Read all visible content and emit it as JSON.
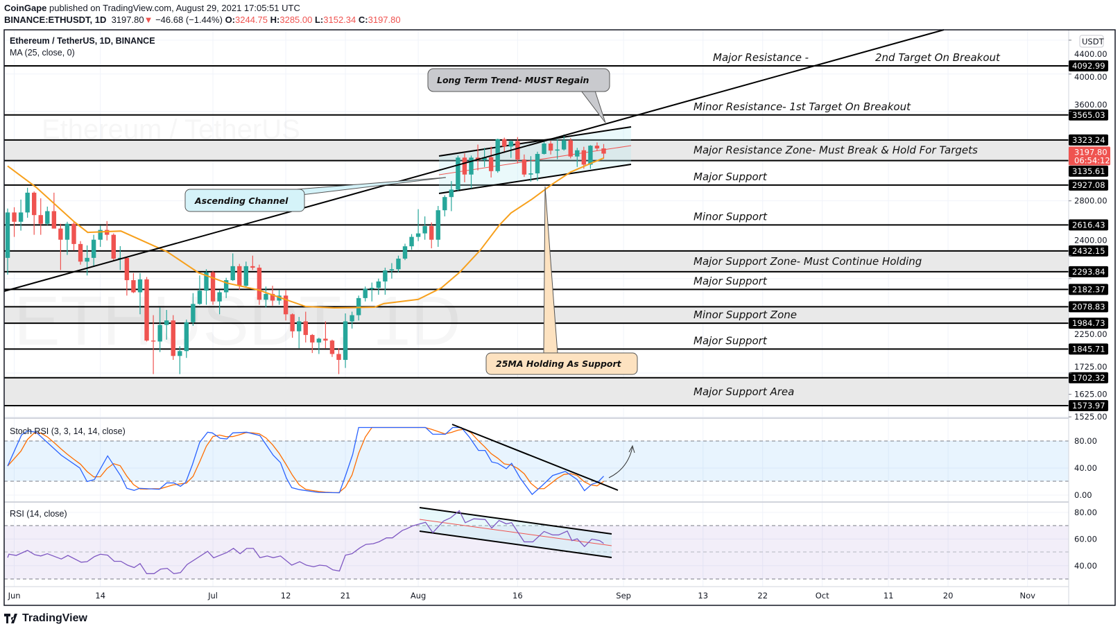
{
  "header": {
    "publisher": "CoinGape",
    "published_text": "published on TradingView.com, August 29, 2021 17:05:51 UTC",
    "symbol": "BINANCE:ETHUSDT, 1D",
    "last": "3197.80",
    "change": "−46.68 (−1.44%)",
    "o_label": "O:",
    "o": "3244.75",
    "h_label": "H:",
    "h": "3285.00",
    "l_label": "L:",
    "l": "3152.34",
    "c_label": "C:",
    "c": "3197.80"
  },
  "legend": {
    "title": "Ethereum / TetherUS, 1D, BINANCE",
    "ma": "MA (25, close, 0)"
  },
  "watermark": {
    "big": "ETHUSDT, 1D",
    "small": "Ethereum / TetherUS"
  },
  "currency_button": "USDT",
  "current_price": {
    "value": "3197.80",
    "countdown": "06:54:12"
  },
  "callouts": {
    "long_term": "Long Term Trend- MUST Regain",
    "channel": "Ascending Channel",
    "ma_support": "25MA Holding As Support"
  },
  "branding": "TradingView",
  "colors": {
    "up": "#26a69a",
    "down": "#ef5350",
    "ma": "#f7a01c",
    "k": "#2962ff",
    "d": "#ff6d00",
    "rsi": "#7e57c2"
  },
  "chart_data": {
    "type": "candlestick",
    "title": "Ethereum / TetherUS, 1D, BINANCE",
    "scale": "log",
    "ylim": [
      1500,
      4500
    ],
    "candles": {
      "o": [
        2385,
        2710,
        2640,
        2710,
        2865,
        2690,
        2625,
        2720,
        2590,
        2510,
        2625,
        2480,
        2360,
        2385,
        2510,
        2580,
        2545,
        2380,
        2385,
        2240,
        2165,
        2245,
        1890,
        1885,
        1975,
        2000,
        1810,
        1835,
        1990,
        2095,
        2175,
        2290,
        2110,
        2165,
        2240,
        2330,
        2205,
        2330,
        2320,
        2120,
        2155,
        2115,
        2145,
        2035,
        1940,
        1995,
        1920,
        1880,
        1900,
        1890,
        1820,
        1790,
        1995,
        2030,
        2130,
        2186,
        2192,
        2232,
        2302,
        2310,
        2380,
        2464,
        2530,
        2555,
        2608,
        2510,
        2727,
        2830,
        2890,
        3162,
        3015,
        3162,
        3140,
        3166,
        3044,
        3330,
        3262,
        3312,
        3145,
        3015,
        3025,
        3195,
        3290,
        3225,
        3235,
        3320,
        3172,
        3228,
        3100,
        3270,
        3244.75
      ],
      "h": [
        2740,
        2750,
        2810,
        2905,
        2875,
        2820,
        2755,
        2865,
        2625,
        2640,
        2640,
        2500,
        2470,
        2545,
        2610,
        2645,
        2555,
        2465,
        2390,
        2285,
        2285,
        2260,
        2030,
        2075,
        2060,
        2030,
        1860,
        2005,
        2160,
        2270,
        2310,
        2300,
        2180,
        2255,
        2415,
        2345,
        2360,
        2400,
        2340,
        2200,
        2205,
        2180,
        2180,
        2040,
        2020,
        2050,
        1925,
        1905,
        1995,
        1895,
        1850,
        2040,
        2050,
        2145,
        2200,
        2225,
        2250,
        2320,
        2350,
        2400,
        2482,
        2550,
        2735,
        2680,
        2635,
        2760,
        2845,
        2960,
        3180,
        3200,
        3180,
        3280,
        3250,
        3260,
        3335,
        3345,
        3320,
        3350,
        3190,
        3175,
        3215,
        3310,
        3315,
        3330,
        3375,
        3340,
        3250,
        3260,
        3275,
        3300,
        3285.0
      ],
      "l": [
        2275,
        2530,
        2575,
        2670,
        2545,
        2545,
        2615,
        2590,
        2305,
        2405,
        2435,
        2340,
        2270,
        2325,
        2460,
        2505,
        2365,
        2305,
        2145,
        2160,
        2035,
        1885,
        1720,
        1830,
        1895,
        1790,
        1720,
        1800,
        1970,
        2090,
        2090,
        2090,
        2035,
        2130,
        2235,
        2180,
        2195,
        2305,
        2090,
        2075,
        2085,
        2090,
        2000,
        1905,
        1850,
        1880,
        1825,
        1820,
        1850,
        1805,
        1720,
        1750,
        1955,
        2000,
        2110,
        2110,
        2150,
        2150,
        2250,
        2290,
        2370,
        2440,
        2500,
        2510,
        2450,
        2460,
        2680,
        2720,
        2880,
        2950,
        2900,
        3050,
        3080,
        2990,
        3030,
        3205,
        3160,
        3110,
        2995,
        2955,
        2960,
        3190,
        3190,
        3148,
        3225,
        3155,
        3080,
        3065,
        3065,
        3225,
        3152.34
      ],
      "c": [
        2710,
        2640,
        2710,
        2865,
        2690,
        2625,
        2720,
        2590,
        2510,
        2625,
        2480,
        2360,
        2385,
        2510,
        2580,
        2545,
        2380,
        2385,
        2240,
        2165,
        2245,
        1890,
        1885,
        1975,
        2000,
        1810,
        1835,
        1990,
        2095,
        2175,
        2290,
        2110,
        2165,
        2240,
        2330,
        2205,
        2330,
        2320,
        2120,
        2155,
        2115,
        2145,
        2035,
        1940,
        1995,
        1920,
        1880,
        1900,
        1890,
        1820,
        1790,
        1995,
        2030,
        2130,
        2186,
        2192,
        2232,
        2302,
        2310,
        2380,
        2464,
        2530,
        2555,
        2608,
        2510,
        2727,
        2830,
        2890,
        3162,
        3015,
        3162,
        3140,
        3166,
        3044,
        3330,
        3262,
        3312,
        3145,
        3015,
        3025,
        3195,
        3290,
        3225,
        3235,
        3320,
        3172,
        3228,
        3100,
        3270,
        3244.48,
        3197.8
      ]
    },
    "ma25": [
      [
        0,
        3088
      ],
      [
        4.3,
        2909
      ],
      [
        10.1,
        2638
      ],
      [
        12.1,
        2562
      ],
      [
        17.1,
        2572
      ],
      [
        24.1,
        2426
      ],
      [
        28.8,
        2288
      ],
      [
        33.1,
        2222
      ],
      [
        37.8,
        2180
      ],
      [
        45,
        2080
      ],
      [
        49.3,
        2072
      ],
      [
        55.4,
        2076
      ],
      [
        56.8,
        2097
      ],
      [
        62,
        2122
      ],
      [
        65.5,
        2192
      ],
      [
        68.3,
        2292
      ],
      [
        71.4,
        2439
      ],
      [
        74.2,
        2613
      ],
      [
        76,
        2706
      ],
      [
        79.2,
        2814
      ],
      [
        82.3,
        2937
      ],
      [
        85,
        3036
      ],
      [
        88.2,
        3115
      ],
      [
        90,
        3158
      ]
    ],
    "levels": [
      {
        "kind": "line",
        "prices": [
          "4092.99"
        ],
        "labels": [
          "Major Resistance -",
          "2nd Target On Breakout"
        ]
      },
      {
        "kind": "line",
        "prices": [
          "3565.03"
        ],
        "labels": [
          "Minor Resistance- 1st Target On Breakout"
        ]
      },
      {
        "kind": "zone",
        "prices": [
          "3323.24",
          "3135.61"
        ],
        "labels": [
          "Major Resistance Zone- Must Break & Hold For Targets"
        ]
      },
      {
        "kind": "line",
        "prices": [
          "2927.08"
        ],
        "labels": [
          "Major Support"
        ]
      },
      {
        "kind": "line",
        "prices": [
          "2616.43"
        ],
        "labels": [
          "Minor Support"
        ]
      },
      {
        "kind": "zone",
        "prices": [
          "2432.15",
          "2293.84"
        ],
        "labels": [
          "Major Support Zone- Must Continue Holding"
        ]
      },
      {
        "kind": "line",
        "prices": [
          "2182.37"
        ],
        "labels": [
          "Major Support"
        ]
      },
      {
        "kind": "zone",
        "prices": [
          "2078.83",
          "1984.73"
        ],
        "labels": [
          "Minor Support Zone"
        ]
      },
      {
        "kind": "line",
        "prices": [
          "1845.71"
        ],
        "labels": [
          "Major Support"
        ]
      },
      {
        "kind": "zone",
        "prices": [
          "1702.32",
          "1573.97"
        ],
        "labels": [
          "Major Support Area"
        ]
      }
    ],
    "price_ticks": [
      "4400.00",
      "4000.00",
      "3600.00",
      "2800.00",
      "2400.00",
      "2250.00",
      "1725.00",
      "1625.00",
      "1525.00"
    ],
    "time_axis": [
      {
        "day": 1,
        "label": "Jun"
      },
      {
        "day": 14,
        "label": "14"
      },
      {
        "day": 31,
        "label": "Jul"
      },
      {
        "day": 42,
        "label": "12"
      },
      {
        "day": 51,
        "label": "21"
      },
      {
        "day": 62,
        "label": "Aug"
      },
      {
        "day": 77,
        "label": "16"
      },
      {
        "day": 93,
        "label": "Sep"
      },
      {
        "day": 105,
        "label": "13"
      },
      {
        "day": 114,
        "label": "22"
      },
      {
        "day": 123,
        "label": "Oct"
      },
      {
        "day": 133,
        "label": "11"
      },
      {
        "day": 142,
        "label": "20"
      },
      {
        "day": 154,
        "label": "Nov"
      }
    ],
    "stoch_rsi": {
      "title": "Stoch RSI (3, 3, 14, 14, close)",
      "ticks": [
        "80.00",
        "40.00",
        "0.00"
      ],
      "bands": [
        20,
        80
      ],
      "k": [
        [
          0,
          43
        ],
        [
          2.1,
          89
        ],
        [
          3,
          95
        ],
        [
          4.3,
          93
        ],
        [
          8.1,
          59
        ],
        [
          10.9,
          40
        ],
        [
          12,
          20
        ],
        [
          13.1,
          23
        ],
        [
          15.1,
          58
        ],
        [
          17.1,
          28
        ],
        [
          18,
          10
        ],
        [
          19.1,
          7
        ],
        [
          19.9,
          10
        ],
        [
          22.9,
          8.6
        ],
        [
          24,
          18
        ],
        [
          25.1,
          18
        ],
        [
          26.1,
          13
        ],
        [
          26.9,
          19
        ],
        [
          27.9,
          45
        ],
        [
          29,
          78
        ],
        [
          30.2,
          93
        ],
        [
          30.9,
          92
        ],
        [
          32.1,
          84
        ],
        [
          33.1,
          83
        ],
        [
          34,
          92
        ],
        [
          36.1,
          93
        ],
        [
          38.1,
          88
        ],
        [
          40.1,
          59
        ],
        [
          41.2,
          48
        ],
        [
          42.1,
          25
        ],
        [
          42.9,
          11
        ],
        [
          44.1,
          8
        ],
        [
          46.9,
          4
        ],
        [
          50.1,
          3.5
        ],
        [
          51.1,
          31
        ],
        [
          52.1,
          60
        ],
        [
          53,
          100
        ],
        [
          63.1,
          100
        ],
        [
          64.2,
          90
        ],
        [
          66.1,
          90
        ],
        [
          67.2,
          100
        ],
        [
          68.5,
          100
        ],
        [
          69.7,
          86
        ],
        [
          71.1,
          66
        ],
        [
          72.1,
          66
        ],
        [
          73.1,
          49
        ],
        [
          74,
          47
        ],
        [
          75.3,
          39
        ],
        [
          76.1,
          47
        ],
        [
          77.4,
          25
        ],
        [
          79.2,
          1
        ],
        [
          80.7,
          14
        ],
        [
          82.3,
          29
        ],
        [
          84.2,
          35
        ],
        [
          86,
          23
        ],
        [
          87.1,
          6.5
        ],
        [
          88.2,
          16
        ],
        [
          89.1,
          19
        ],
        [
          90,
          28
        ]
      ]
    },
    "rsi": {
      "title": "RSI (14, close)",
      "ticks": [
        "80.00",
        "60.00",
        "40.00"
      ],
      "bands": [
        30,
        50,
        70
      ],
      "values": [
        [
          0,
          46.1
        ],
        [
          0.2,
          48.6
        ],
        [
          1.3,
          47.7
        ],
        [
          3,
          51.5
        ],
        [
          4.1,
          48.2
        ],
        [
          5,
          47.3
        ],
        [
          6,
          49
        ],
        [
          8.1,
          45
        ],
        [
          9.1,
          47.7
        ],
        [
          11.1,
          42.6
        ],
        [
          12,
          43
        ],
        [
          13.1,
          46.8
        ],
        [
          14,
          48.6
        ],
        [
          15.1,
          47.9
        ],
        [
          16.1,
          43.3
        ],
        [
          17.1,
          43.3
        ],
        [
          18.1,
          40.4
        ],
        [
          19.1,
          38.6
        ],
        [
          20,
          41.6
        ],
        [
          21,
          34
        ],
        [
          22.1,
          34
        ],
        [
          23.1,
          37.4
        ],
        [
          24.1,
          38
        ],
        [
          25.1,
          34
        ],
        [
          26.1,
          34.8
        ],
        [
          27.1,
          40.9
        ],
        [
          30.2,
          50.8
        ],
        [
          31.1,
          45.9
        ],
        [
          33.1,
          49.9
        ],
        [
          34.1,
          53
        ],
        [
          35.1,
          49
        ],
        [
          36.1,
          53
        ],
        [
          37.1,
          53
        ],
        [
          38.1,
          46
        ],
        [
          39.2,
          47.3
        ],
        [
          40.1,
          46
        ],
        [
          41.2,
          47.3
        ],
        [
          42.9,
          40.4
        ],
        [
          44.1,
          43
        ],
        [
          45.1,
          40.4
        ],
        [
          46.2,
          39.2
        ],
        [
          47.1,
          40.4
        ],
        [
          48.1,
          39.9
        ],
        [
          49.1,
          36.9
        ],
        [
          50.1,
          36
        ],
        [
          51,
          47.9
        ],
        [
          52,
          49
        ],
        [
          53.2,
          53.4
        ],
        [
          54.1,
          56
        ],
        [
          55.2,
          56.5
        ],
        [
          56.1,
          58
        ],
        [
          57.2,
          60.9
        ],
        [
          58.1,
          60.9
        ],
        [
          59.6,
          66.5
        ],
        [
          60.2,
          67.6
        ],
        [
          61.2,
          70
        ],
        [
          63.1,
          72.6
        ],
        [
          64.2,
          64.8
        ],
        [
          65.8,
          73.5
        ],
        [
          66.9,
          76
        ],
        [
          68.2,
          81.3
        ],
        [
          69.1,
          72.3
        ],
        [
          70.4,
          75.2
        ],
        [
          72.1,
          74.7
        ],
        [
          73.1,
          68.3
        ],
        [
          74.2,
          74
        ],
        [
          75.3,
          71.4
        ],
        [
          76.1,
          72.3
        ],
        [
          78,
          57.9
        ],
        [
          79.3,
          57.9
        ],
        [
          81,
          65.7
        ],
        [
          82.3,
          63.1
        ],
        [
          83.2,
          63.1
        ],
        [
          84.5,
          66
        ],
        [
          85.2,
          58.8
        ],
        [
          86,
          60.2
        ],
        [
          87.1,
          54.4
        ],
        [
          88.2,
          60
        ],
        [
          89.4,
          58.8
        ],
        [
          90,
          56.7
        ]
      ]
    }
  }
}
